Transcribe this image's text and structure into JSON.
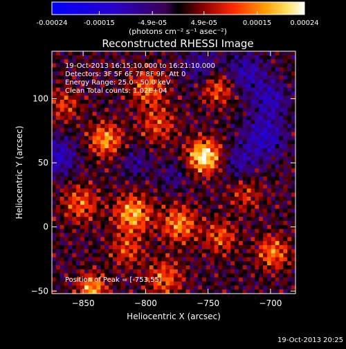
{
  "chart_data": {
    "type": "heatmap",
    "title": "Reconstructed RHESSI Image",
    "xlabel": "Heliocentric X (arcsec)",
    "ylabel": "Heliocentric Y (arcsec)",
    "xlim": [
      -875,
      -680
    ],
    "ylim": [
      -52,
      137
    ],
    "x_ticks": [
      -850,
      -800,
      -750,
      -700
    ],
    "y_ticks": [
      -50,
      0,
      50,
      100
    ],
    "colorbar": {
      "ticks": [
        "-0.00024",
        "-0.00015",
        "-4.9e-05",
        "4.9e-05",
        "0.00015",
        "0.00024"
      ],
      "tick_values": [
        -0.00024,
        -0.00015,
        -4.9e-05,
        4.9e-05,
        0.00015,
        0.00024
      ],
      "label": "(photons cm⁻² s⁻¹ asec⁻²)",
      "range": [
        -0.00024,
        0.00024
      ]
    },
    "annotations": [
      "19-Oct-2013 16:15:10.000 to 16:21:10.000",
      "Detectors: 3F 5F 6F 7F 8F 9F, Att 0",
      "Energy Range: 25.0 - 50.0 keV",
      "Clean     Total counts: 1.02E+04"
    ],
    "peak_label": "Position of Peak = [-753,55]",
    "peak": [
      -753,
      55
    ],
    "timestamp": "19-Oct-2013 20:25",
    "sources": [
      {
        "x": -753,
        "y": 55,
        "amp": 0.00024,
        "sigma": 9
      },
      {
        "x": -810,
        "y": 10,
        "amp": 0.00018,
        "sigma": 10
      },
      {
        "x": -832,
        "y": 68,
        "amp": 0.00016,
        "sigma": 9
      },
      {
        "x": -773,
        "y": 2,
        "amp": 0.00015,
        "sigma": 10
      },
      {
        "x": -798,
        "y": 108,
        "amp": 0.00012,
        "sigma": 10
      },
      {
        "x": -843,
        "y": -48,
        "amp": 0.00017,
        "sigma": 8
      },
      {
        "x": -698,
        "y": -20,
        "amp": 0.00014,
        "sigma": 9
      },
      {
        "x": -742,
        "y": 108,
        "amp": 0.00012,
        "sigma": 9
      },
      {
        "x": -785,
        "y": -40,
        "amp": 0.00012,
        "sigma": 10
      },
      {
        "x": -740,
        "y": -8,
        "amp": 0.00011,
        "sigma": 9
      },
      {
        "x": -852,
        "y": 18,
        "amp": 0.00012,
        "sigma": 10
      },
      {
        "x": -815,
        "y": -18,
        "amp": 0.0001,
        "sigma": 9
      },
      {
        "x": -790,
        "y": 80,
        "amp": 0.0001,
        "sigma": 10
      },
      {
        "x": -720,
        "y": 25,
        "amp": 8e-05,
        "sigma": 9
      },
      {
        "x": -865,
        "y": 95,
        "amp": 9e-05,
        "sigma": 9
      },
      {
        "x": -870,
        "y": 55,
        "amp": -0.00012,
        "sigma": 10
      },
      {
        "x": -705,
        "y": 70,
        "amp": -0.00012,
        "sigma": 12
      },
      {
        "x": -720,
        "y": 120,
        "amp": -0.0001,
        "sigma": 11
      },
      {
        "x": -755,
        "y": 125,
        "amp": -8e-05,
        "sigma": 10
      },
      {
        "x": -700,
        "y": 100,
        "amp": -0.0001,
        "sigma": 10
      },
      {
        "x": -808,
        "y": 50,
        "amp": -7e-05,
        "sigma": 8
      },
      {
        "x": -778,
        "y": 40,
        "amp": -6e-05,
        "sigma": 8
      },
      {
        "x": -725,
        "y": 50,
        "amp": -8e-05,
        "sigma": 9
      }
    ]
  }
}
